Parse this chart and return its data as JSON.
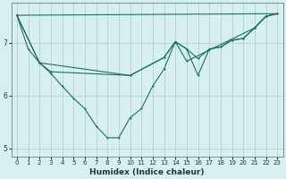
{
  "xlabel": "Humidex (Indice chaleur)",
  "bg_color": "#d8eff2",
  "grid_color": "#a8cdd2",
  "line_color": "#1a7060",
  "spine_color": "#5a8888",
  "xlim": [
    -0.5,
    23.5
  ],
  "ylim": [
    4.85,
    7.75
  ],
  "yticks": [
    5,
    6,
    7
  ],
  "xticks": [
    0,
    1,
    2,
    3,
    4,
    5,
    6,
    7,
    8,
    9,
    10,
    11,
    12,
    13,
    14,
    15,
    16,
    17,
    18,
    19,
    20,
    21,
    22,
    23
  ],
  "line1_x": [
    0,
    1,
    2,
    3,
    4,
    5,
    6,
    7,
    8,
    9,
    10,
    11,
    12,
    13,
    14,
    15,
    16,
    17,
    18,
    19,
    20,
    21,
    22,
    23
  ],
  "line1_y": [
    7.52,
    6.88,
    6.62,
    6.42,
    6.18,
    5.95,
    5.75,
    5.42,
    5.2,
    5.2,
    5.58,
    5.75,
    6.18,
    6.5,
    7.02,
    6.88,
    6.38,
    6.88,
    6.92,
    7.05,
    7.08,
    7.28,
    7.5,
    7.55
  ],
  "line2_x": [
    0,
    2,
    3,
    10,
    13,
    14,
    15,
    16,
    17,
    18,
    19,
    20,
    21,
    22,
    23
  ],
  "line2_y": [
    7.52,
    6.62,
    6.45,
    6.38,
    6.72,
    7.02,
    6.88,
    6.7,
    6.88,
    6.92,
    7.05,
    7.08,
    7.28,
    7.5,
    7.55
  ],
  "line3_x": [
    0,
    2,
    10,
    13,
    14,
    15,
    21,
    22,
    23
  ],
  "line3_y": [
    7.52,
    6.62,
    6.38,
    6.72,
    7.02,
    6.65,
    7.28,
    7.5,
    7.55
  ],
  "line4_x": [
    0,
    23
  ],
  "line4_y": [
    7.52,
    7.55
  ],
  "marker_x1": [
    0,
    1,
    2,
    3,
    4,
    5,
    6,
    7,
    8,
    9,
    10,
    11,
    12,
    13,
    14,
    15,
    16,
    17,
    18,
    19,
    20,
    21,
    22,
    23
  ],
  "marker_y1": [
    7.52,
    6.88,
    6.62,
    6.42,
    6.18,
    5.95,
    5.75,
    5.42,
    5.2,
    5.2,
    5.58,
    5.75,
    6.18,
    6.5,
    7.02,
    6.88,
    6.38,
    6.88,
    6.92,
    7.05,
    7.08,
    7.28,
    7.5,
    7.55
  ]
}
